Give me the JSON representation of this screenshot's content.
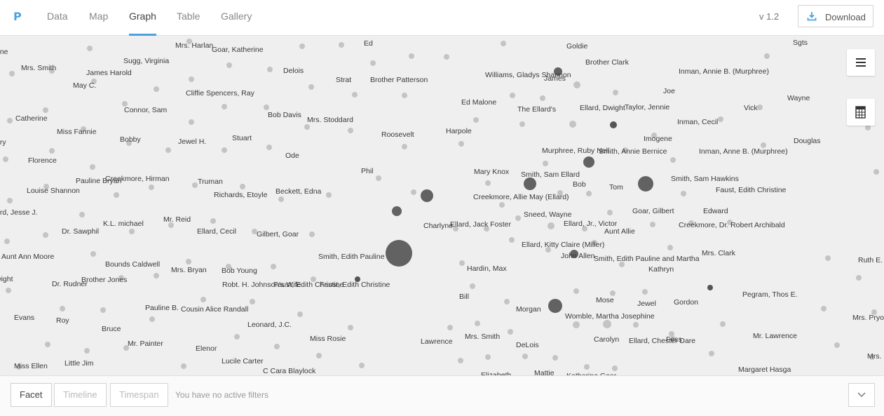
{
  "app": {
    "logo": "P",
    "version": "v 1.2"
  },
  "nav": {
    "tabs": [
      {
        "label": "Data"
      },
      {
        "label": "Map"
      },
      {
        "label": "Graph"
      },
      {
        "label": "Table"
      },
      {
        "label": "Gallery"
      }
    ],
    "download_label": "Download"
  },
  "controls": {
    "list_icon": "hamburger-menu-icon",
    "table_icon": "calculator-grid-icon"
  },
  "footer": {
    "facet": "Facet",
    "timeline": "Timeline",
    "timespan": "Timespan",
    "filters_text": "You have no active filters"
  },
  "graph": {
    "labels": [
      "Mrs. Harlan",
      "Goar, Katherine",
      "Ed",
      "Goldie",
      "Sgts",
      "Brother Clark",
      "Mrs. Smith",
      "Sugg, Virginia",
      "Delois",
      "James Harold",
      "Williams, Gladys Shannon",
      "James",
      "Inman, Annie B. (Murphree)",
      "May C.",
      "Strat",
      "Brother Patterson",
      "Cliffie Spencers, Ray",
      "Joe",
      "Wayne",
      "Catherine",
      "Connor, Sam",
      "Bob Davis",
      "Ed Malone",
      "The Ellard's",
      "Ellard, Dwight",
      "Taylor, Jennie",
      "Vick",
      "Mrs. Stoddard",
      "Inman, Cecil",
      "Miss Fannie",
      "Harpole",
      "Bobby",
      "Jewel H.",
      "Stuart",
      "Roosevelt",
      "Imogene",
      "Douglas",
      "Florence",
      "Ode",
      "Murphree, Ruby Nell",
      "Smith, Annie Bernice",
      "Inman, Anne B. (Murphree)",
      "Phil",
      "Mary Knox",
      "Smith, Sam Ellard",
      "Pauline Bryan",
      "Creekmore, Hirman",
      "Truman",
      "Bob",
      "Tom",
      "Smith, Sam Hawkins",
      "Faust, Edith Christine",
      "Louise Shannon",
      "Richards, Etoyle",
      "Beckett, Edna",
      "Creekmore, Allie May (Ellard)",
      "Edward",
      "Goar, Gilbert",
      "Sneed, Wayne",
      "Mr. Reid",
      "K.L. michael",
      "Charlyne",
      "Ellard, Jack Foster",
      "Ellard, Jr., Victor",
      "Creekmore, Dr. Robert Archibald",
      "Dr. Sawphil",
      "Ellard, Cecil",
      "Gilbert, Goar",
      "Aunt Allie",
      "Ellard, Kitty Claire (Miller)",
      "Smith, Edith Pauline",
      "John Allen",
      "Mrs. Clark",
      "Smith, Edith Pauline and Martha",
      "Aunt Ann Moore",
      "Bounds Caldwell",
      "Kathryn",
      "Mrs. Bryan",
      "Bob Young",
      "Hardin, Max",
      "Ruth E.",
      "Brother Jones",
      "Robt. H. Johnson's Wife",
      "Dr. Rudner",
      "Faust, Edith Christine",
      "Pegram, Thos E.",
      "Bill",
      "Mose",
      "Jewel",
      "Gordon",
      "Pauline B.",
      "Cousin Alice Randall",
      "Morgan",
      "Womble, Martha Josephine",
      "Roy",
      "Mrs. Pryo",
      "Evans",
      "Leonard, J.C.",
      "Bruce",
      "Carolyn",
      "Ellard, Chester Dare",
      "Mrs. Smith",
      "Miss Rosie",
      "Mr. Lawrence",
      "Lawrence",
      "DeLois",
      "Mr. Painter",
      "Elenor",
      "Miss Ellen",
      "Little Jim",
      "Lucile Carter",
      "Mrs. I",
      "C Cara Blaylock",
      "Elizabeth",
      "Mattie",
      "Katherine Goar",
      "Margaret Hasga",
      "Faust, Edith Christine",
      "ene",
      "ary",
      "r",
      "ard, Jesse J.",
      "wight",
      "Fess"
    ]
  }
}
